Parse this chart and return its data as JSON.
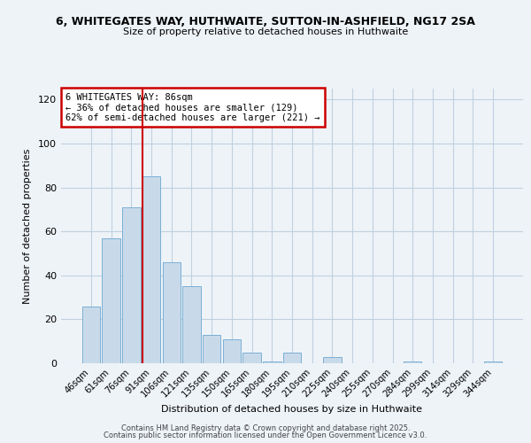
{
  "title_line1": "6, WHITEGATES WAY, HUTHWAITE, SUTTON-IN-ASHFIELD, NG17 2SA",
  "title_line2": "Size of property relative to detached houses in Huthwaite",
  "xlabel": "Distribution of detached houses by size in Huthwaite",
  "ylabel": "Number of detached properties",
  "bar_labels": [
    "46sqm",
    "61sqm",
    "76sqm",
    "91sqm",
    "106sqm",
    "121sqm",
    "135sqm",
    "150sqm",
    "165sqm",
    "180sqm",
    "195sqm",
    "210sqm",
    "225sqm",
    "240sqm",
    "255sqm",
    "270sqm",
    "284sqm",
    "299sqm",
    "314sqm",
    "329sqm",
    "344sqm"
  ],
  "bar_values": [
    26,
    57,
    71,
    85,
    46,
    35,
    13,
    11,
    5,
    1,
    5,
    0,
    3,
    0,
    0,
    0,
    1,
    0,
    0,
    0,
    1
  ],
  "bar_color": "#c8daea",
  "bar_edge_color": "#7bafd4",
  "ylim": [
    0,
    125
  ],
  "yticks": [
    0,
    20,
    40,
    60,
    80,
    100,
    120
  ],
  "vline_color": "#cc0000",
  "annotation_title": "6 WHITEGATES WAY: 86sqm",
  "annotation_line2": "← 36% of detached houses are smaller (129)",
  "annotation_line3": "62% of semi-detached houses are larger (221) →",
  "annotation_box_color": "#cc0000",
  "bg_color": "#eef3f8",
  "footer_line1": "Contains HM Land Registry data © Crown copyright and database right 2025.",
  "footer_line2": "Contains public sector information licensed under the Open Government Licence v3.0.",
  "grid_color": "#c0d0e0"
}
